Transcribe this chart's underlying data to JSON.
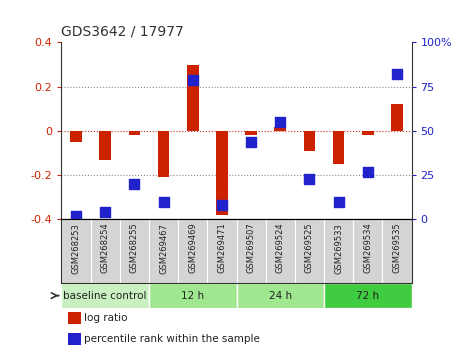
{
  "title": "GDS3642 / 17977",
  "samples": [
    "GSM268253",
    "GSM268254",
    "GSM268255",
    "GSM269467",
    "GSM269469",
    "GSM269471",
    "GSM269507",
    "GSM269524",
    "GSM269525",
    "GSM269533",
    "GSM269534",
    "GSM269535"
  ],
  "log_ratio": [
    -0.05,
    -0.13,
    -0.02,
    -0.21,
    0.3,
    -0.38,
    -0.02,
    0.02,
    -0.09,
    -0.15,
    -0.02,
    0.12
  ],
  "percentile_rank": [
    2,
    4,
    20,
    10,
    79,
    8,
    44,
    55,
    23,
    10,
    27,
    82
  ],
  "groups": [
    {
      "label": "baseline control",
      "start": 0,
      "end": 3,
      "color": "#c8f0c0"
    },
    {
      "label": "12 h",
      "start": 3,
      "end": 6,
      "color": "#a0e890"
    },
    {
      "label": "24 h",
      "start": 6,
      "end": 9,
      "color": "#a0e890"
    },
    {
      "label": "72 h",
      "start": 9,
      "end": 12,
      "color": "#40cc40"
    }
  ],
  "ylim_left": [
    -0.4,
    0.4
  ],
  "ylim_right": [
    0,
    100
  ],
  "yticks_left": [
    -0.4,
    -0.2,
    0.0,
    0.2,
    0.4
  ],
  "yticks_right": [
    0,
    25,
    50,
    75,
    100
  ],
  "bar_color": "#cc2200",
  "dot_color": "#2222cc",
  "bg_color": "#ffffff",
  "plot_bg": "#ffffff",
  "tick_label_color_left": "#cc2200",
  "tick_label_color_right": "#2222cc",
  "bar_width": 0.4,
  "dot_size": 45,
  "sample_col_color": "#d4d4d4",
  "sample_col_edge": "#888888"
}
